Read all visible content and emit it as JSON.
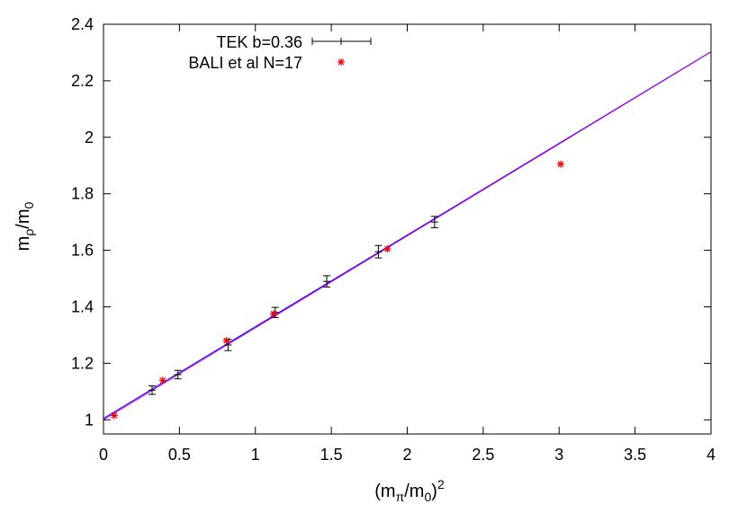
{
  "chart_data": {
    "type": "scatter",
    "xlabel": {
      "base": "(m",
      "sub": "π",
      "mid": "/m",
      "sub2": "0",
      "tail": ")",
      "sup": "2"
    },
    "ylabel": {
      "base": "m",
      "sub": "ρ",
      "mid": "/m",
      "sub2": "0"
    },
    "xlim": [
      0,
      4
    ],
    "ylim": [
      0.95,
      2.4
    ],
    "x_ticks": [
      0,
      0.5,
      1,
      1.5,
      2,
      2.5,
      3,
      3.5,
      4
    ],
    "x_tick_labels": [
      "0",
      "0.5",
      "1",
      "1.5",
      "2",
      "2.5",
      "3",
      "3.5",
      "4"
    ],
    "y_ticks": [
      1,
      1.2,
      1.4,
      1.6,
      1.8,
      2,
      2.2,
      2.4
    ],
    "y_tick_labels": [
      "1",
      "1.2",
      "1.4",
      "1.6",
      "1.8",
      "2",
      "2.2",
      "2.4"
    ],
    "grid": false,
    "legend_position": "top-left",
    "series": [
      {
        "name": "TEK b=0.36",
        "marker": "errorbar",
        "color": "#000000",
        "x": [
          0.32,
          0.49,
          0.82,
          1.13,
          1.47,
          1.81,
          2.18
        ],
        "y": [
          1.105,
          1.16,
          1.265,
          1.38,
          1.49,
          1.595,
          1.7
        ],
        "yerr": [
          0.015,
          0.015,
          0.02,
          0.018,
          0.02,
          0.022,
          0.02
        ]
      },
      {
        "name": "BALI et al N=17",
        "marker": "asterisk",
        "color": "#e8000b",
        "x": [
          0.07,
          0.39,
          0.81,
          1.12,
          1.87,
          3.01
        ],
        "y": [
          1.015,
          1.14,
          1.28,
          1.375,
          1.605,
          1.905
        ]
      }
    ],
    "fit_lines": [
      {
        "color": "#0000ff",
        "intercept": 1.005,
        "slope": 0.3245
      },
      {
        "color": "#cc00cc",
        "intercept": 1.0,
        "slope": 0.3255
      }
    ]
  }
}
